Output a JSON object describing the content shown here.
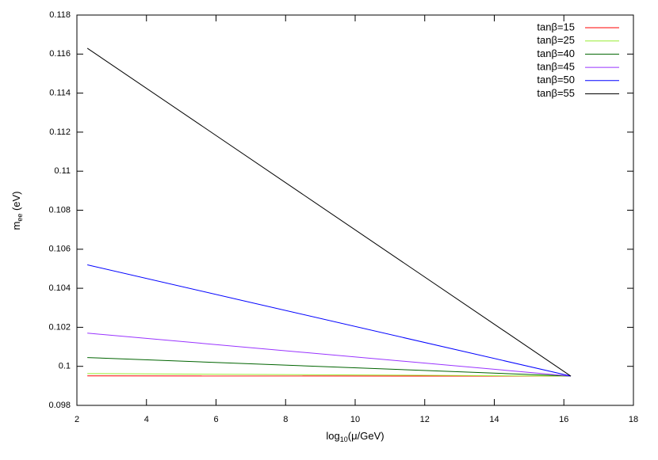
{
  "chart_data": {
    "type": "line",
    "xlabel": {
      "main": "log",
      "sub": "10",
      "rest": "(μ/GeV)"
    },
    "ylabel": {
      "main": "m",
      "sub": "ee",
      "rest": " (eV)"
    },
    "x": [
      2.3,
      16.2
    ],
    "series": [
      {
        "name": "tanβ=15",
        "color": "#ff0000",
        "values": [
          0.09951,
          0.0995
        ]
      },
      {
        "name": "tanβ=25",
        "color": "#99ee33",
        "values": [
          0.09963,
          0.0995
        ]
      },
      {
        "name": "tanβ=40",
        "color": "#006400",
        "values": [
          0.10045,
          0.0995
        ]
      },
      {
        "name": "tanβ=45",
        "color": "#9933ff",
        "values": [
          0.1017,
          0.0995
        ]
      },
      {
        "name": "tanβ=50",
        "color": "#0000ff",
        "values": [
          0.1052,
          0.0995
        ]
      },
      {
        "name": "tanβ=55",
        "color": "#000000",
        "values": [
          0.1163,
          0.0995
        ]
      }
    ],
    "xlim": [
      2,
      18
    ],
    "xticks": [
      2,
      4,
      6,
      8,
      10,
      12,
      14,
      16,
      18
    ],
    "ylim": [
      0.098,
      0.118
    ],
    "yticks": [
      0.098,
      0.1,
      0.102,
      0.104,
      0.106,
      0.108,
      0.11,
      0.112,
      0.114,
      0.116,
      0.118
    ],
    "legend": "top-right"
  }
}
